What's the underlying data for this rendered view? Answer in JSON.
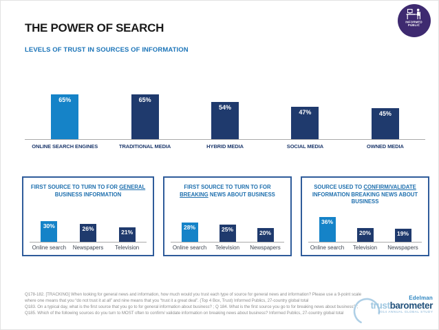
{
  "header": {
    "title": "THE POWER OF SEARCH",
    "subtitle": "LEVELS OF TRUST IN SOURCES OF INFORMATION"
  },
  "badge": {
    "line1": "INFORMED",
    "line2": "PUBLIC",
    "icon": "person-at-computer-icon",
    "color": "#3e2a70"
  },
  "colors": {
    "highlight": "#1583c8",
    "navy": "#1f3a6d",
    "box_border": "#2e5b9a",
    "axis": "#a9a9a9",
    "title_blue": "#1e6fae",
    "subtitle_blue": "#1b74b8"
  },
  "chart_data": [
    {
      "type": "bar",
      "title": "LEVELS OF TRUST IN SOURCES OF INFORMATION",
      "categories": [
        "ONLINE SEARCH ENGINES",
        "TRADITIONAL MEDIA",
        "HYBRID MEDIA",
        "SOCIAL MEDIA",
        "OWNED MEDIA"
      ],
      "values": [
        65,
        65,
        54,
        47,
        45
      ],
      "unit": "%",
      "highlight_index": 0,
      "ylim": [
        0,
        100
      ],
      "grid": false,
      "legend": false,
      "value_labels": "inside-top-white"
    },
    {
      "type": "bar",
      "title": "FIRST SOURCE TO TURN TO FOR GENERAL BUSINESS INFORMATION",
      "title_parts": [
        {
          "t": "FIRST SOURCE TO TURN TO FOR ",
          "u": false
        },
        {
          "t": "GENERAL",
          "u": true
        },
        {
          "t": " BUSINESS INFORMATION",
          "u": false
        }
      ],
      "categories": [
        "Online search",
        "Newspapers",
        "Television"
      ],
      "values": [
        30,
        26,
        21
      ],
      "unit": "%",
      "highlight_index": 0,
      "ylim": [
        0,
        40
      ],
      "grid": false,
      "legend": false
    },
    {
      "type": "bar",
      "title": "FIRST SOURCE TO TURN TO FOR BREAKING NEWS ABOUT BUSINESS",
      "title_parts": [
        {
          "t": "FIRST SOURCE TO TURN TO FOR ",
          "u": false
        },
        {
          "t": "BREAKING",
          "u": true
        },
        {
          "t": " NEWS ABOUT BUSINESS",
          "u": false
        }
      ],
      "categories": [
        "Online search",
        "Television",
        "Newspapers"
      ],
      "values": [
        28,
        25,
        20
      ],
      "unit": "%",
      "highlight_index": 0,
      "ylim": [
        0,
        40
      ],
      "grid": false,
      "legend": false
    },
    {
      "type": "bar",
      "title": "SOURCE USED TO CONFIRM/VALIDATE INFORMATION BREAKING NEWS ABOUT BUSINESS",
      "title_parts": [
        {
          "t": "SOURCE USED TO ",
          "u": false
        },
        {
          "t": "CONFIRM/VALIDATE",
          "u": true
        },
        {
          "t": " INFORMATION BREAKING NEWS ABOUT BUSINESS",
          "u": false
        }
      ],
      "categories": [
        "Online search",
        "Television",
        "Newspapers"
      ],
      "values": [
        36,
        20,
        19
      ],
      "unit": "%",
      "highlight_index": 0,
      "ylim": [
        0,
        40
      ],
      "grid": false,
      "legend": false
    }
  ],
  "footnote": {
    "lines": [
      "Q178-182. [TRACKING] When looking for general news and information, how much would you trust each type of source for general news and information? Please use a 9-point scale",
      "where one means that you “do not trust it at all” and nine means that you “trust it a great deal”. (Top 4 Box, Trust) Informed Publics, 27-country global total",
      "Q183. On a typical day, what is the first source that you go to for general information about business? ; Q 184. What is the first source you go to for breaking news about business? ;",
      "Q185. Which of the following sources do you turn to MOST often to confirm/ validate information on breaking news about business? Informed Publics, 27-country global total"
    ]
  },
  "logo": {
    "brand": "Edelman",
    "name_light": "trust",
    "name_dark": "barometer",
    "tagline": "2014 ANNUAL GLOBAL STUDY"
  }
}
